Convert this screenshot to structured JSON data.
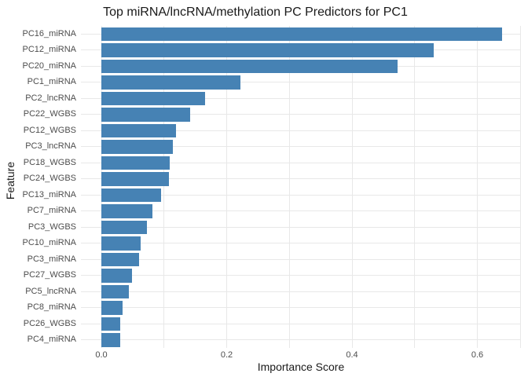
{
  "chart_data": {
    "type": "bar",
    "orientation": "horizontal",
    "title": "Top miRNA/lncRNA/methylation PC Predictors for PC1",
    "xlabel": "Importance Score",
    "ylabel": "Feature",
    "categories": [
      "PC16_miRNA",
      "PC12_miRNA",
      "PC20_miRNA",
      "PC1_miRNA",
      "PC2_lncRNA",
      "PC22_WGBS",
      "PC12_WGBS",
      "PC3_lncRNA",
      "PC18_WGBS",
      "PC24_WGBS",
      "PC13_miRNA",
      "PC7_miRNA",
      "PC3_WGBS",
      "PC10_miRNA",
      "PC3_miRNA",
      "PC27_WGBS",
      "PC5_lncRNA",
      "PC8_miRNA",
      "PC26_WGBS",
      "PC4_miRNA"
    ],
    "values": [
      0.64,
      0.531,
      0.473,
      0.222,
      0.166,
      0.142,
      0.119,
      0.114,
      0.109,
      0.108,
      0.095,
      0.082,
      0.073,
      0.063,
      0.06,
      0.049,
      0.044,
      0.034,
      0.03,
      0.03
    ],
    "xlim": [
      0,
      0.67
    ],
    "x_ticks": [
      "0.0",
      "0.2",
      "0.4",
      "0.6"
    ],
    "x_tick_values": [
      0.0,
      0.2,
      0.4,
      0.6
    ],
    "x_gridline_values": [
      0.0,
      0.1,
      0.2,
      0.3,
      0.4,
      0.5,
      0.6
    ],
    "grid": true,
    "legend": "none",
    "colors": {
      "bar": "#4682b4",
      "grid": "#e8e8e8",
      "tick_label": "#4d4d4d",
      "text": "#1a1a1a",
      "background": "#ffffff"
    }
  }
}
